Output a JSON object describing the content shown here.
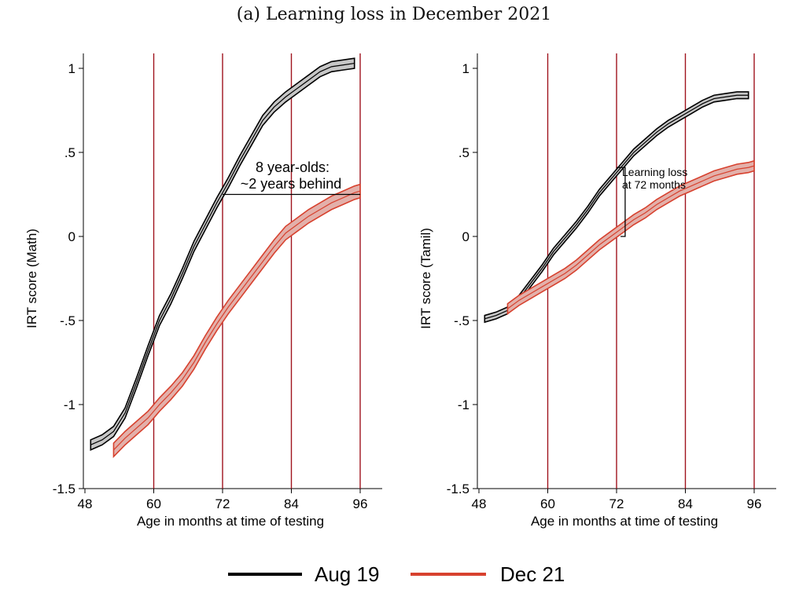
{
  "figure_title": "(a) Learning loss in December 2021",
  "colors": {
    "aug19": "#000000",
    "dec21": "#d7412e",
    "vline": "#a0141e",
    "band": "#c8c8c8"
  },
  "legend": [
    {
      "label": "Aug 19",
      "color": "#000000"
    },
    {
      "label": "Dec 21",
      "color": "#d7412e"
    }
  ],
  "chart_data": [
    {
      "type": "line",
      "title": "",
      "xlabel": "Age in months at time of testing",
      "ylabel": "IRT score (Math)",
      "xlim": [
        48,
        96
      ],
      "ylim": [
        -1.5,
        1
      ],
      "xticks": [
        48,
        60,
        72,
        84,
        96
      ],
      "yticks": [
        -1.5,
        -1,
        -0.5,
        0,
        0.5,
        1
      ],
      "ytick_labels": [
        "-1.5",
        "-1",
        "-.5",
        "0",
        ".5",
        "1"
      ],
      "vlines": [
        60,
        72,
        84,
        96
      ],
      "series": [
        {
          "name": "Aug 19",
          "x": [
            49,
            51,
            53,
            55,
            57,
            59,
            61,
            63,
            65,
            67,
            69,
            71,
            73,
            75,
            77,
            79,
            81,
            83,
            85,
            87,
            89,
            91,
            93,
            95
          ],
          "y": [
            -1.24,
            -1.21,
            -1.16,
            -1.05,
            -0.87,
            -0.68,
            -0.5,
            -0.37,
            -0.22,
            -0.06,
            0.07,
            0.2,
            0.32,
            0.45,
            0.57,
            0.69,
            0.77,
            0.83,
            0.88,
            0.93,
            0.98,
            1.01,
            1.02,
            1.03
          ],
          "band": 0.03
        },
        {
          "name": "Dec 21",
          "x": [
            53,
            55,
            57,
            59,
            61,
            63,
            65,
            67,
            69,
            71,
            73,
            75,
            77,
            79,
            81,
            83,
            85,
            87,
            89,
            91,
            93,
            95,
            96
          ],
          "y": [
            -1.27,
            -1.2,
            -1.14,
            -1.08,
            -1.0,
            -0.93,
            -0.85,
            -0.75,
            -0.63,
            -0.52,
            -0.42,
            -0.33,
            -0.24,
            -0.15,
            -0.06,
            0.02,
            0.07,
            0.12,
            0.16,
            0.2,
            0.23,
            0.26,
            0.27
          ],
          "band": 0.04
        }
      ],
      "annotation": {
        "lines": [
          "8 year-olds:",
          "~2 years behind"
        ],
        "bracket": {
          "x_from": 72,
          "x_to": 96,
          "y": 0.25,
          "drop_to": 0.25
        }
      }
    },
    {
      "type": "line",
      "title": "",
      "xlabel": "Age in months at time of testing",
      "ylabel": "IRT score (Tamil)",
      "xlim": [
        48,
        96
      ],
      "ylim": [
        -1.5,
        1
      ],
      "xticks": [
        48,
        60,
        72,
        84,
        96
      ],
      "yticks": [
        -1.5,
        -1,
        -0.5,
        0,
        0.5,
        1
      ],
      "ytick_labels": [
        "-1.5",
        "-1",
        "-.5",
        "0",
        ".5",
        "1"
      ],
      "vlines": [
        60,
        72,
        84,
        96
      ],
      "series": [
        {
          "name": "Aug 19",
          "x": [
            49,
            51,
            53,
            55,
            57,
            59,
            61,
            63,
            65,
            67,
            69,
            71,
            73,
            75,
            77,
            79,
            81,
            83,
            85,
            87,
            89,
            91,
            93,
            95
          ],
          "y": [
            -0.49,
            -0.47,
            -0.44,
            -0.37,
            -0.28,
            -0.19,
            -0.09,
            -0.01,
            0.07,
            0.16,
            0.26,
            0.34,
            0.42,
            0.5,
            0.56,
            0.62,
            0.67,
            0.71,
            0.75,
            0.79,
            0.82,
            0.83,
            0.84,
            0.84
          ],
          "band": 0.02
        },
        {
          "name": "Dec 21",
          "x": [
            53,
            55,
            57,
            59,
            61,
            63,
            65,
            67,
            69,
            71,
            73,
            75,
            77,
            79,
            81,
            83,
            85,
            87,
            89,
            91,
            93,
            95,
            96
          ],
          "y": [
            -0.43,
            -0.38,
            -0.34,
            -0.3,
            -0.26,
            -0.22,
            -0.17,
            -0.11,
            -0.05,
            0.0,
            0.05,
            0.1,
            0.14,
            0.19,
            0.23,
            0.27,
            0.3,
            0.33,
            0.36,
            0.38,
            0.4,
            0.41,
            0.42
          ],
          "band": 0.03
        }
      ],
      "annotation": {
        "lines": [
          "Learning loss",
          "at 72 months"
        ],
        "bracket": {
          "x_from": 72,
          "x_to": 73.5,
          "y": 0.41,
          "drop_to": 0.0
        }
      }
    }
  ]
}
